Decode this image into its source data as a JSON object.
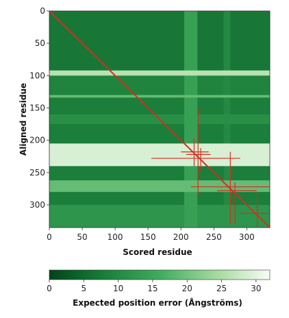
{
  "chart_data": {
    "type": "heatmap",
    "title": "",
    "xlabel": "Scored residue",
    "ylabel": "Aligned residue",
    "xlim": [
      0,
      335
    ],
    "ylim": [
      0,
      335
    ],
    "x_ticks": [
      0,
      50,
      100,
      150,
      200,
      250,
      300
    ],
    "y_ticks": [
      0,
      50,
      100,
      150,
      200,
      250,
      300
    ],
    "colorbar": {
      "label": "Expected position error (Ångströms)",
      "ticks": [
        0,
        5,
        10,
        15,
        20,
        25,
        30
      ],
      "range": [
        0,
        32
      ],
      "color_low": "#00441b",
      "color_mid": "#41ab5d",
      "color_high": "#f7fcf5"
    },
    "diagonal_line_color": "#d62d20",
    "row_error_profile": [
      {
        "from": 0,
        "to": 92,
        "error": 7
      },
      {
        "from": 92,
        "to": 100,
        "error": 26
      },
      {
        "from": 100,
        "to": 130,
        "error": 9
      },
      {
        "from": 130,
        "to": 134,
        "error": 19
      },
      {
        "from": 134,
        "to": 160,
        "error": 8
      },
      {
        "from": 160,
        "to": 175,
        "error": 11
      },
      {
        "from": 175,
        "to": 205,
        "error": 8
      },
      {
        "from": 205,
        "to": 240,
        "error": 29
      },
      {
        "from": 240,
        "to": 262,
        "error": 8
      },
      {
        "from": 262,
        "to": 280,
        "error": 19
      },
      {
        "from": 280,
        "to": 300,
        "error": 8
      },
      {
        "from": 300,
        "to": 335,
        "error": 12
      }
    ],
    "column_error_profile": [
      {
        "from": 0,
        "to": 205,
        "error": 0
      },
      {
        "from": 205,
        "to": 225,
        "error": 14
      },
      {
        "from": 225,
        "to": 265,
        "error": 4
      },
      {
        "from": 265,
        "to": 275,
        "error": 10
      },
      {
        "from": 275,
        "to": 335,
        "error": 3
      }
    ],
    "crosshair_markers": [
      {
        "x": 220,
        "y": 218,
        "x_extent": [
          200,
          242
        ],
        "y_extent": [
          198,
          240
        ]
      },
      {
        "x": 226,
        "y": 222,
        "x_extent": [
          208,
          245
        ],
        "y_extent": [
          150,
          285
        ]
      },
      {
        "x": 230,
        "y": 228,
        "x_extent": [
          155,
          290
        ],
        "y_extent": [
          212,
          248
        ]
      },
      {
        "x": 275,
        "y": 272,
        "x_extent": [
          215,
          335
        ],
        "y_extent": [
          218,
          330
        ]
      },
      {
        "x": 282,
        "y": 278,
        "x_extent": [
          255,
          315
        ],
        "y_extent": [
          265,
          330
        ]
      },
      {
        "x": 316,
        "y": 313,
        "x_extent": [
          290,
          335
        ],
        "y_extent": [
          280,
          335
        ]
      }
    ]
  }
}
